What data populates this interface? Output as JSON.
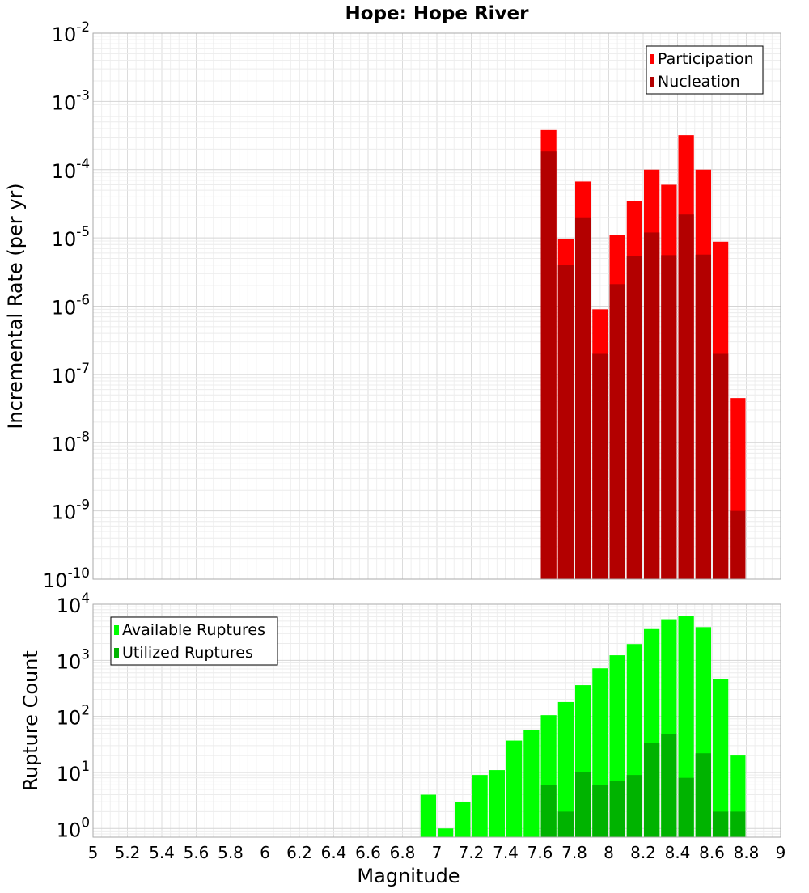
{
  "chart_data": [
    {
      "type": "bar",
      "title": "Hope: Hope River",
      "xlabel": "",
      "ylabel": "Incremental Rate (per yr)",
      "xlim": [
        5,
        9
      ],
      "ylim": [
        1e-10,
        0.01
      ],
      "yscale": "log",
      "grid": true,
      "legend": "top-right",
      "tick_labels_y": [
        "10^-10",
        "10^-9",
        "10^-8",
        "10^-7",
        "10^-6",
        "10^-5",
        "10^-4",
        "10^-3",
        "10^-2"
      ],
      "bin_width": 0.1,
      "x": [
        7.65,
        7.75,
        7.85,
        7.95,
        8.05,
        8.15,
        8.25,
        8.35,
        8.45,
        8.55,
        8.65,
        8.75
      ],
      "series": [
        {
          "name": "Participation",
          "color": "#ff0000",
          "values": [
            0.00038,
            9.5e-06,
            6.7e-05,
            9e-07,
            1.1e-05,
            3.5e-05,
            0.0001,
            6e-05,
            0.00032,
            0.0001,
            8.8e-06,
            4.5e-08
          ]
        },
        {
          "name": "Nucleation",
          "color": "#b30000",
          "values": [
            0.000185,
            4e-06,
            2e-05,
            2e-07,
            2.1e-06,
            5.4e-06,
            1.2e-05,
            5.6e-06,
            2.2e-05,
            5.7e-06,
            2e-07,
            1e-09
          ]
        }
      ]
    },
    {
      "type": "bar",
      "title": "",
      "xlabel": "Magnitude",
      "ylabel": "Rupture Count",
      "xlim": [
        5,
        9
      ],
      "ylim": [
        0.7,
        10000
      ],
      "yscale": "log",
      "grid": true,
      "legend": "top-left",
      "tick_labels_x": [
        "5",
        "5.2",
        "5.4",
        "5.6",
        "5.8",
        "6",
        "6.2",
        "6.4",
        "6.6",
        "6.8",
        "7",
        "7.2",
        "7.4",
        "7.6",
        "7.8",
        "8",
        "8.2",
        "8.4",
        "8.6",
        "8.8",
        "9"
      ],
      "tick_labels_y": [
        "10^0",
        "10^1",
        "10^2",
        "10^3",
        "10^4"
      ],
      "bin_width": 0.1,
      "x": [
        6.95,
        7.05,
        7.15,
        7.25,
        7.35,
        7.45,
        7.55,
        7.65,
        7.75,
        7.85,
        7.95,
        8.05,
        8.15,
        8.25,
        8.35,
        8.45,
        8.55,
        8.65,
        8.75
      ],
      "series": [
        {
          "name": "Available Ruptures",
          "color": "#00ff00",
          "values": [
            4,
            1,
            3,
            9,
            11,
            37,
            58,
            105,
            180,
            360,
            720,
            1230,
            1950,
            3600,
            5400,
            6100,
            3900,
            470,
            20
          ]
        },
        {
          "name": "Utilized Ruptures",
          "color": "#00b300",
          "values": [
            0,
            0,
            0,
            0,
            0,
            0,
            0,
            6,
            2,
            10,
            6,
            7,
            9,
            34,
            48,
            8,
            22,
            2,
            2
          ]
        }
      ]
    }
  ]
}
